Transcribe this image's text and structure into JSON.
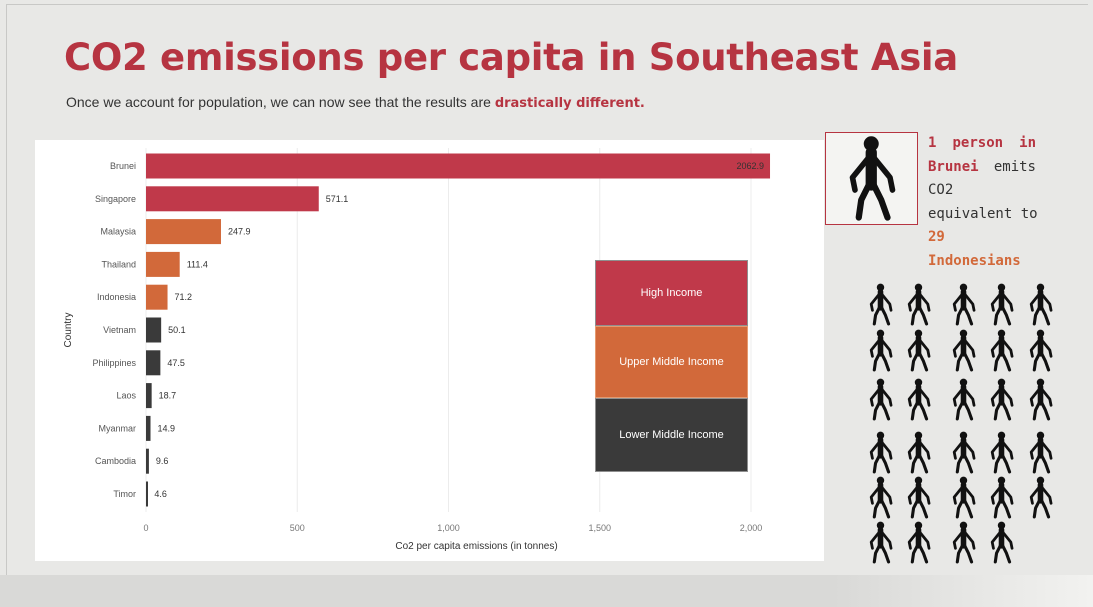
{
  "slide": {
    "title": "CO2 emissions per capita in Southeast Asia",
    "subtitle_prefix": "Once we account for population, we can now see that the results are ",
    "subtitle_emphasis": "drastically different.",
    "colors": {
      "title": "#b63441",
      "high_income": "#c0394a",
      "upper_middle_income": "#d2693a",
      "lower_middle_income": "#3a3a3a",
      "background": "#e8e8e6"
    }
  },
  "chart_data": {
    "type": "bar",
    "orientation": "horizontal",
    "categories": [
      "Brunei",
      "Singapore",
      "Malaysia",
      "Thailand",
      "Indonesia",
      "Vietnam",
      "Philippines",
      "Laos",
      "Myanmar",
      "Cambodia",
      "Timor"
    ],
    "values": [
      2062.9,
      571.1,
      247.9,
      111.4,
      71.2,
      50.1,
      47.5,
      18.7,
      14.9,
      9.6,
      4.6
    ],
    "value_labels": [
      "2062.9",
      "571.1",
      "247.9",
      "111.4",
      "71.2",
      "50.1",
      "47.5",
      "18.7",
      "14.9",
      "9.6",
      "4.6"
    ],
    "income_group": [
      "high",
      "high",
      "upper",
      "upper",
      "upper",
      "lower",
      "lower",
      "lower",
      "lower",
      "lower",
      "lower"
    ],
    "xlabel": "Co2 per capita emissions (in tonnes)",
    "ylabel": "Country",
    "xlim": [
      0,
      2100
    ],
    "xticks": [
      0,
      500,
      1000,
      1500,
      2000
    ],
    "xtick_labels": [
      "0",
      "500",
      "1,000",
      "1,500",
      "2,000"
    ],
    "grid": true,
    "legend_position": "right",
    "legend": [
      {
        "key": "high",
        "label": "High Income",
        "color": "#c0394a"
      },
      {
        "key": "upper",
        "label": "Upper Middle Income",
        "color": "#d2693a"
      },
      {
        "key": "lower",
        "label": "Lower Middle Income",
        "color": "#3a3a3a"
      }
    ]
  },
  "callout": {
    "line1_a": "1",
    "line1_b": "person",
    "line1_c": "in",
    "line2_a": "Brunei",
    "line2_b": "emits",
    "line3": "CO2",
    "line4_a": "equivalent",
    "line4_b": "to",
    "line5": "29",
    "line6": "Indonesians",
    "icon": "person-walking-icon"
  },
  "people_grid": {
    "count": 29,
    "icon": "person-walking-icon"
  }
}
